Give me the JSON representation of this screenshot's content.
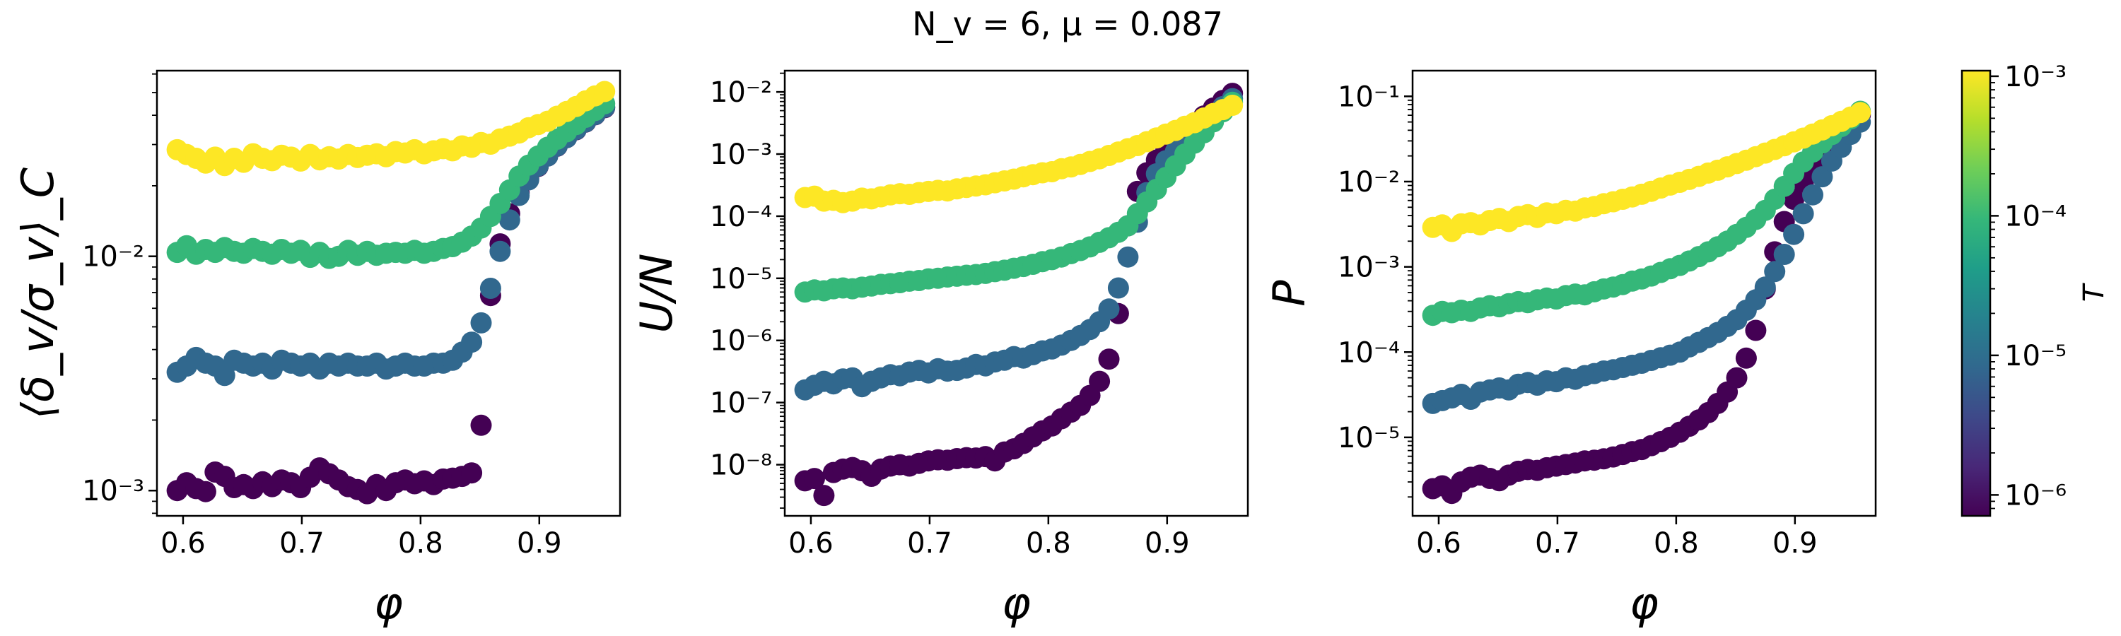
{
  "figure": {
    "title": "N_v = 6, μ = 0.087"
  },
  "chart_data": [
    {
      "type": "scatter",
      "title": "",
      "xlabel": "φ",
      "ylabel": "⟨δ_v/σ_v⟩_C",
      "xscale": "linear",
      "yscale": "log",
      "xlim": [
        0.578,
        0.968
      ],
      "ylim": [
        0.00078,
        0.062
      ],
      "xticks": [
        0.6,
        0.7,
        0.8,
        0.9
      ],
      "xtick_labels": [
        "0.6",
        "0.7",
        "0.8",
        "0.9"
      ],
      "yticks": [
        0.001,
        0.01
      ],
      "ytick_labels": [
        "10⁻³",
        "10⁻²"
      ],
      "x": [
        0.595,
        0.603,
        0.611,
        0.619,
        0.627,
        0.635,
        0.643,
        0.651,
        0.659,
        0.667,
        0.675,
        0.683,
        0.691,
        0.699,
        0.707,
        0.715,
        0.723,
        0.731,
        0.739,
        0.747,
        0.755,
        0.763,
        0.771,
        0.779,
        0.787,
        0.795,
        0.803,
        0.811,
        0.819,
        0.827,
        0.835,
        0.843,
        0.851,
        0.859,
        0.867,
        0.875,
        0.883,
        0.891,
        0.899,
        0.907,
        0.915,
        0.923,
        0.931,
        0.939,
        0.947,
        0.955
      ],
      "series": [
        {
          "T": 0.001,
          "color": "#fde725",
          "values": [
            0.0285,
            0.0272,
            0.0262,
            0.025,
            0.0265,
            0.0244,
            0.0262,
            0.0252,
            0.0274,
            0.0262,
            0.0256,
            0.027,
            0.0265,
            0.0255,
            0.0272,
            0.0258,
            0.0266,
            0.026,
            0.0272,
            0.0264,
            0.027,
            0.0274,
            0.0266,
            0.028,
            0.0276,
            0.0285,
            0.0274,
            0.0282,
            0.0288,
            0.0282,
            0.0296,
            0.0292,
            0.0306,
            0.0301,
            0.0317,
            0.0326,
            0.0336,
            0.0354,
            0.0365,
            0.0377,
            0.0396,
            0.0415,
            0.0436,
            0.0461,
            0.0484,
            0.0505
          ]
        },
        {
          "T": 0.0001,
          "color": "#35b779",
          "values": [
            0.0104,
            0.0111,
            0.0102,
            0.0107,
            0.0104,
            0.0109,
            0.0105,
            0.0103,
            0.0108,
            0.0105,
            0.0102,
            0.0107,
            0.0103,
            0.0106,
            0.0099,
            0.0104,
            0.0098,
            0.01,
            0.0106,
            0.0101,
            0.0105,
            0.0101,
            0.0103,
            0.0104,
            0.0103,
            0.0106,
            0.0103,
            0.0105,
            0.0108,
            0.011,
            0.0115,
            0.0122,
            0.0132,
            0.0148,
            0.0168,
            0.0192,
            0.022,
            0.0245,
            0.0268,
            0.0292,
            0.0316,
            0.034,
            0.0365,
            0.0392,
            0.0419,
            0.0448
          ]
        },
        {
          "T": 1e-05,
          "color": "#31688e",
          "values": [
            0.0032,
            0.0034,
            0.0037,
            0.0035,
            0.0034,
            0.0031,
            0.0036,
            0.0035,
            0.0034,
            0.0035,
            0.0033,
            0.0036,
            0.0035,
            0.0034,
            0.0035,
            0.0033,
            0.0035,
            0.0034,
            0.0035,
            0.0034,
            0.0034,
            0.0035,
            0.0033,
            0.0034,
            0.0035,
            0.0034,
            0.0034,
            0.0035,
            0.0035,
            0.0036,
            0.0039,
            0.0043,
            0.0052,
            0.0073,
            0.0105,
            0.0143,
            0.0182,
            0.0212,
            0.0243,
            0.0268,
            0.0296,
            0.0321,
            0.0348,
            0.0375,
            0.0403,
            0.0433
          ]
        },
        {
          "T": 1e-06,
          "color": "#440154",
          "values": [
            0.001,
            0.00108,
            0.00102,
            0.00099,
            0.0012,
            0.00115,
            0.00103,
            0.00106,
            0.00102,
            0.00109,
            0.00104,
            0.00111,
            0.00108,
            0.00103,
            0.00114,
            0.00125,
            0.00118,
            0.00111,
            0.00104,
            0.00101,
            0.00097,
            0.00106,
            0.001,
            0.00108,
            0.00111,
            0.00107,
            0.0011,
            0.00106,
            0.00112,
            0.00113,
            0.00115,
            0.00119,
            0.0019,
            0.0068,
            0.0113,
            0.0152,
            0.0186,
            0.0215,
            0.0242,
            0.0268,
            0.0295,
            0.0321,
            0.0347,
            0.0374,
            0.0402,
            0.0431
          ]
        }
      ]
    },
    {
      "type": "scatter",
      "title": "",
      "xlabel": "φ",
      "ylabel": "U/N",
      "xscale": "linear",
      "yscale": "log",
      "xlim": [
        0.578,
        0.968
      ],
      "ylim": [
        1.5e-09,
        0.022
      ],
      "xticks": [
        0.6,
        0.7,
        0.8,
        0.9
      ],
      "xtick_labels": [
        "0.6",
        "0.7",
        "0.8",
        "0.9"
      ],
      "yticks": [
        1e-08,
        1e-07,
        1e-06,
        1e-05,
        0.0001,
        0.001,
        0.01
      ],
      "ytick_labels": [
        "10⁻⁸",
        "10⁻⁷",
        "10⁻⁶",
        "10⁻⁵",
        "10⁻⁴",
        "10⁻³",
        "10⁻²"
      ],
      "x": [
        0.595,
        0.603,
        0.611,
        0.619,
        0.627,
        0.635,
        0.643,
        0.651,
        0.659,
        0.667,
        0.675,
        0.683,
        0.691,
        0.699,
        0.707,
        0.715,
        0.723,
        0.731,
        0.739,
        0.747,
        0.755,
        0.763,
        0.771,
        0.779,
        0.787,
        0.795,
        0.803,
        0.811,
        0.819,
        0.827,
        0.835,
        0.843,
        0.851,
        0.859,
        0.867,
        0.875,
        0.883,
        0.891,
        0.899,
        0.907,
        0.915,
        0.923,
        0.931,
        0.939,
        0.947,
        0.955
      ],
      "series": [
        {
          "T": 0.001,
          "color": "#fde725",
          "values": [
            0.0002,
            0.00021,
            0.000175,
            0.00018,
            0.000165,
            0.000175,
            0.000195,
            0.00019,
            0.000205,
            0.00022,
            0.00023,
            0.000225,
            0.00024,
            0.00025,
            0.00026,
            0.000255,
            0.000275,
            0.00029,
            0.000305,
            0.00032,
            0.000345,
            0.00037,
            0.000395,
            0.00043,
            0.000465,
            0.0005,
            0.00052,
            0.00058,
            0.00062,
            0.00068,
            0.00076,
            0.00084,
            0.00095,
            0.00108,
            0.00122,
            0.00137,
            0.00158,
            0.00182,
            0.0021,
            0.0024,
            0.0028,
            0.0032,
            0.0038,
            0.0045,
            0.0052,
            0.0061
          ]
        },
        {
          "T": 0.0001,
          "color": "#35b779",
          "values": [
            6e-06,
            6.5e-06,
            6.3e-06,
            6.8e-06,
            7e-06,
            6.8e-06,
            7.2e-06,
            7.5e-06,
            8e-06,
            8.2e-06,
            8.5e-06,
            9e-06,
            9.2e-06,
            9.8e-06,
            1e-05,
            1.05e-05,
            1.08e-05,
            1.12e-05,
            1.15e-05,
            1.2e-05,
            1.28e-05,
            1.35e-05,
            1.45e-05,
            1.55e-05,
            1.68e-05,
            1.85e-05,
            2e-05,
            2.2e-05,
            2.5e-05,
            2.8e-05,
            3.2e-05,
            3.8e-05,
            4.5e-05,
            5.5e-05,
            7e-05,
            0.00011,
            0.00017,
            0.00027,
            0.00042,
            0.00065,
            0.001,
            0.0015,
            0.0022,
            0.0033,
            0.0048,
            0.0068
          ]
        },
        {
          "T": 1e-05,
          "color": "#31688e",
          "values": [
            1.6e-07,
            1.9e-07,
            2.2e-07,
            2e-07,
            2.4e-07,
            2.5e-07,
            1.8e-07,
            2.2e-07,
            2.5e-07,
            2.8e-07,
            2.7e-07,
            3.1e-07,
            3.3e-07,
            3e-07,
            3.5e-07,
            3.2e-07,
            3.3e-07,
            3.6e-07,
            4.1e-07,
            3.9e-07,
            4.5e-07,
            4.8e-07,
            5.5e-07,
            5.2e-07,
            5.9e-07,
            6.8e-07,
            7.3e-07,
            8.4e-07,
            1e-06,
            1.2e-06,
            1.5e-06,
            2e-06,
            3.2e-06,
            7e-06,
            2.2e-05,
            8e-05,
            0.00024,
            0.00048,
            0.00078,
            0.0011,
            0.0016,
            0.0022,
            0.0031,
            0.0043,
            0.0058,
            0.0078
          ]
        },
        {
          "T": 1e-06,
          "color": "#440154",
          "values": [
            5.5e-09,
            6e-09,
            3.2e-09,
            7.5e-09,
            8.5e-09,
            9e-09,
            8e-09,
            6.5e-09,
            8.5e-09,
            9.5e-09,
            1e-08,
            9.5e-09,
            1.05e-08,
            1.15e-08,
            1.2e-08,
            1.18e-08,
            1.25e-08,
            1.3e-08,
            1.28e-08,
            1.35e-08,
            1.15e-08,
            1.6e-08,
            1.8e-08,
            2.2e-08,
            2.8e-08,
            3.5e-08,
            4.2e-08,
            5.5e-08,
            7e-08,
            9e-08,
            1.3e-07,
            2.2e-07,
            5e-07,
            2.7e-06,
            7e-05,
            0.00025,
            0.0005,
            0.0008,
            0.00115,
            0.0016,
            0.0022,
            0.003,
            0.0041,
            0.0055,
            0.0073,
            0.0095
          ]
        }
      ]
    },
    {
      "type": "scatter",
      "title": "",
      "xlabel": "φ",
      "ylabel": "P",
      "xscale": "linear",
      "yscale": "log",
      "xlim": [
        0.578,
        0.968
      ],
      "ylim": [
        1.2e-06,
        0.2
      ],
      "xticks": [
        0.6,
        0.7,
        0.8,
        0.9
      ],
      "xtick_labels": [
        "0.6",
        "0.7",
        "0.8",
        "0.9"
      ],
      "yticks": [
        1e-05,
        0.0001,
        0.001,
        0.01,
        0.1
      ],
      "ytick_labels": [
        "10⁻⁵",
        "10⁻⁴",
        "10⁻³",
        "10⁻²",
        "10⁻¹"
      ],
      "x": [
        0.595,
        0.603,
        0.611,
        0.619,
        0.627,
        0.635,
        0.643,
        0.651,
        0.659,
        0.667,
        0.675,
        0.683,
        0.691,
        0.699,
        0.707,
        0.715,
        0.723,
        0.731,
        0.739,
        0.747,
        0.755,
        0.763,
        0.771,
        0.779,
        0.787,
        0.795,
        0.803,
        0.811,
        0.819,
        0.827,
        0.835,
        0.843,
        0.851,
        0.859,
        0.867,
        0.875,
        0.883,
        0.891,
        0.899,
        0.907,
        0.915,
        0.923,
        0.931,
        0.939,
        0.947,
        0.955
      ],
      "series": [
        {
          "T": 0.001,
          "color": "#fde725",
          "values": [
            0.0029,
            0.0031,
            0.0026,
            0.0032,
            0.0033,
            0.0031,
            0.0035,
            0.0037,
            0.0034,
            0.0039,
            0.0041,
            0.0038,
            0.0043,
            0.0042,
            0.0046,
            0.0045,
            0.0049,
            0.0051,
            0.0055,
            0.0058,
            0.0062,
            0.0066,
            0.0071,
            0.0077,
            0.0084,
            0.0091,
            0.0098,
            0.0106,
            0.0115,
            0.0126,
            0.0136,
            0.0149,
            0.0163,
            0.0178,
            0.0196,
            0.0216,
            0.0238,
            0.0263,
            0.0292,
            0.0323,
            0.0361,
            0.0403,
            0.0452,
            0.0508,
            0.0572,
            0.0645
          ]
        },
        {
          "T": 0.0001,
          "color": "#35b779",
          "values": [
            0.00027,
            0.0003,
            0.00029,
            0.00031,
            0.0003,
            0.00033,
            0.00035,
            0.00034,
            0.00037,
            0.00039,
            0.00038,
            0.00041,
            0.00043,
            0.00042,
            0.00046,
            0.00048,
            0.00047,
            0.00051,
            0.00055,
            0.00058,
            0.00062,
            0.00068,
            0.00072,
            0.00078,
            0.00086,
            0.00095,
            0.00104,
            0.00117,
            0.00132,
            0.0015,
            0.00172,
            0.002,
            0.0024,
            0.0029,
            0.0036,
            0.0046,
            0.0062,
            0.0088,
            0.0125,
            0.017,
            0.0222,
            0.0284,
            0.0356,
            0.0443,
            0.0545,
            0.0668
          ]
        },
        {
          "T": 1e-05,
          "color": "#31688e",
          "values": [
            2.5e-05,
            2.7e-05,
            2.9e-05,
            3.2e-05,
            2.8e-05,
            3.4e-05,
            3.6e-05,
            3.8e-05,
            3.6e-05,
            4.2e-05,
            4.4e-05,
            4.1e-05,
            4.6e-05,
            4.5e-05,
            5e-05,
            4.8e-05,
            5.3e-05,
            5.6e-05,
            6e-05,
            6.2e-05,
            6.6e-05,
            7e-05,
            7.4e-05,
            8e-05,
            8.6e-05,
            9.2e-05,
            0.0001,
            0.000115,
            0.00013,
            0.000148,
            0.00017,
            0.0002,
            0.00024,
            0.00031,
            0.00041,
            0.00058,
            0.00088,
            0.0014,
            0.0024,
            0.0042,
            0.007,
            0.0114,
            0.0174,
            0.0252,
            0.0358,
            0.0498
          ]
        },
        {
          "T": 1e-06,
          "color": "#440154",
          "values": [
            2.5e-06,
            2.7e-06,
            2.2e-06,
            3e-06,
            3.4e-06,
            3.6e-06,
            3.3e-06,
            3.1e-06,
            3.6e-06,
            4e-06,
            4.2e-06,
            4.1e-06,
            4.4e-06,
            4.6e-06,
            4.8e-06,
            5e-06,
            5.3e-06,
            5.4e-06,
            5.6e-06,
            5.9e-06,
            6.3e-06,
            6.8e-06,
            7.2e-06,
            8e-06,
            8.9e-06,
            1e-05,
            1.15e-05,
            1.35e-05,
            1.6e-05,
            1.95e-05,
            2.5e-05,
            3.4e-05,
            5e-05,
            8.5e-05,
            0.00018,
            0.00055,
            0.0015,
            0.0034,
            0.0062,
            0.0098,
            0.0142,
            0.0198,
            0.0268,
            0.0358,
            0.0468,
            0.0605
          ]
        }
      ]
    }
  ],
  "colorbar": {
    "label": "T",
    "colors": [
      "#440154",
      "#482878",
      "#3e4989",
      "#31688e",
      "#26828e",
      "#1f9e89",
      "#35b779",
      "#6ece58",
      "#b5de2b",
      "#fde725"
    ],
    "tick_labels": [
      "10⁻⁶",
      "10⁻⁵",
      "10⁻⁴",
      "10⁻³"
    ]
  }
}
